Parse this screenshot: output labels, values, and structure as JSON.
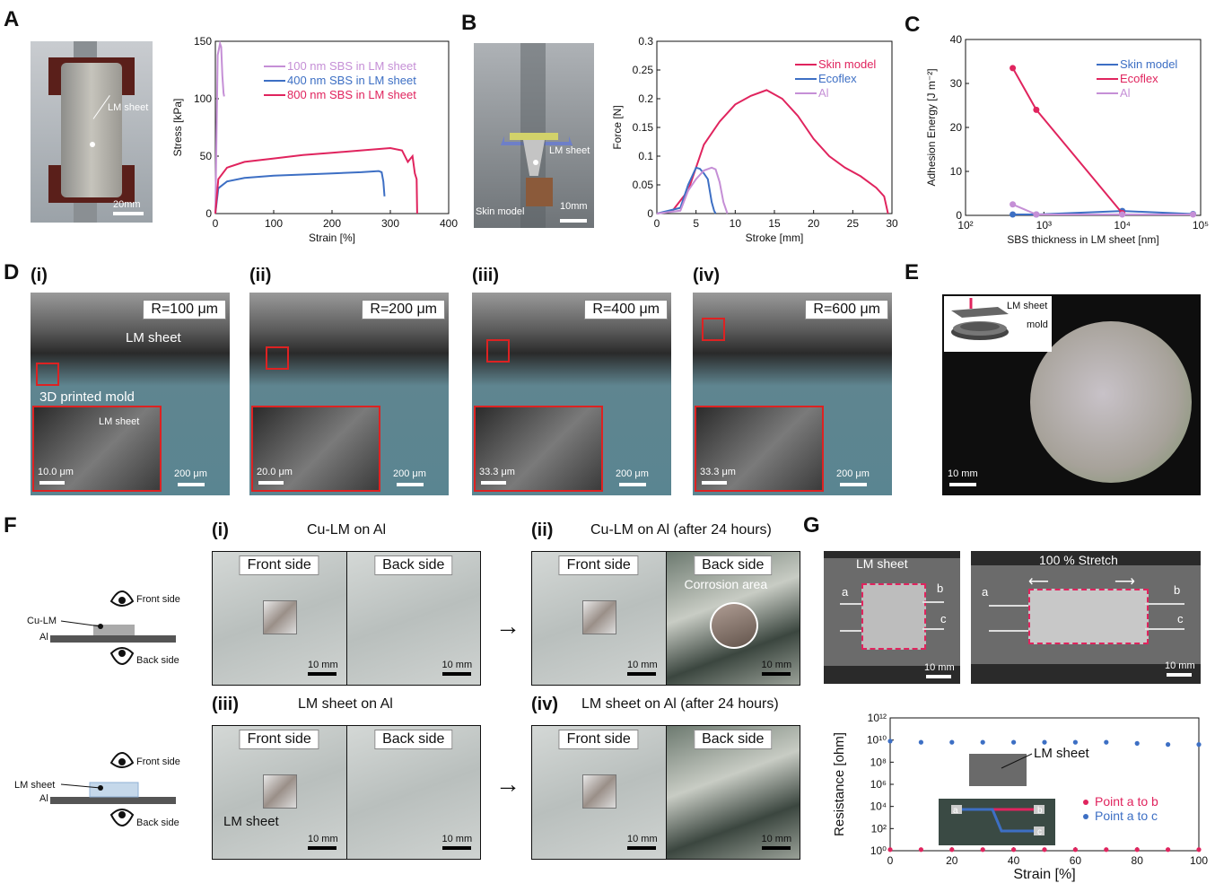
{
  "panels": {
    "A": "A",
    "B": "B",
    "C": "C",
    "D": "D",
    "E": "E",
    "F": "F",
    "G": "G"
  },
  "panelA": {
    "photo_label": "LM sheet",
    "scale": "20mm"
  },
  "panelB": {
    "photo_labels": [
      "LM sheet",
      "Skin model"
    ],
    "scale": "10mm"
  },
  "panelD": {
    "subpanels": [
      {
        "label": "(i)",
        "radius": "R=100 μm",
        "scale_main": "200 μm",
        "scale_inset": "10.0 μm",
        "tags": [
          "LM sheet",
          "3D printed mold"
        ],
        "inset_tag": "LM sheet"
      },
      {
        "label": "(ii)",
        "radius": "R=200 μm",
        "scale_main": "200 μm",
        "scale_inset": "20.0 μm"
      },
      {
        "label": "(iii)",
        "radius": "R=400 μm",
        "scale_main": "200 μm",
        "scale_inset": "33.3 μm"
      },
      {
        "label": "(iv)",
        "radius": "R=600 μm",
        "scale_main": "200 μm",
        "scale_inset": "33.3 μm"
      }
    ]
  },
  "panelE": {
    "inset_labels": [
      "LM sheet",
      "mold"
    ],
    "scale": "10 mm"
  },
  "panelF": {
    "schematic": {
      "top": {
        "eye_front": "Front side",
        "eye_back": "Back side",
        "layer1": "Cu-LM",
        "layer2": "Al"
      },
      "bottom": {
        "eye_front": "Front side",
        "eye_back": "Back side",
        "layer1": "LM sheet",
        "layer2": "Al"
      }
    },
    "subpanels": [
      {
        "label": "(i)",
        "title": "Cu-LM on Al",
        "front": "Front side",
        "back": "Back side",
        "scale": "10 mm"
      },
      {
        "label": "(ii)",
        "title": "Cu-LM on Al (after 24 hours)",
        "front": "Front side",
        "back": "Back side",
        "scale": "10 mm",
        "extra": "Corrosion area"
      },
      {
        "label": "(iii)",
        "title": "LM sheet on Al",
        "front": "Front side",
        "back": "Back side",
        "scale": "10 mm",
        "extra": "LM sheet"
      },
      {
        "label": "(iv)",
        "title": "LM sheet on Al (after 24 hours)",
        "front": "Front side",
        "back": "Back side",
        "scale": "10 mm"
      }
    ],
    "arrow": "→"
  },
  "panelG": {
    "photo1": {
      "title": "LM sheet",
      "points": [
        "a",
        "b",
        "c"
      ],
      "scale": "10 mm"
    },
    "photo2": {
      "title": "100 % Stretch",
      "points": [
        "a",
        "b",
        "c"
      ],
      "scale": "10 mm"
    }
  },
  "chart_data": [
    {
      "id": "A",
      "type": "line",
      "xlabel": "Strain [%]",
      "ylabel": "Stress [kPa]",
      "xlim": [
        0,
        400
      ],
      "ylim": [
        0,
        150
      ],
      "xticks": [
        0,
        100,
        200,
        300,
        400
      ],
      "yticks": [
        0,
        50,
        100,
        150
      ],
      "legend": "top-right",
      "series": [
        {
          "name": "100 nm SBS in LM sheet",
          "color": "#c58fd6",
          "x": [
            0,
            4,
            8,
            10,
            12,
            14,
            15
          ],
          "y": [
            0,
            138,
            148,
            145,
            120,
            105,
            102
          ]
        },
        {
          "name": "400 nm SBS in LM sheet",
          "color": "#3d6fc4",
          "x": [
            0,
            5,
            20,
            50,
            100,
            150,
            200,
            250,
            280,
            285,
            288,
            290
          ],
          "y": [
            0,
            22,
            28,
            31,
            33,
            34,
            35,
            36,
            37,
            36,
            28,
            15
          ]
        },
        {
          "name": "800 nm SBS in LM sheet",
          "color": "#e0245e",
          "x": [
            0,
            5,
            20,
            50,
            100,
            150,
            200,
            250,
            300,
            320,
            330,
            338,
            342,
            345,
            346
          ],
          "y": [
            0,
            30,
            40,
            45,
            48,
            51,
            53,
            55,
            57,
            55,
            45,
            50,
            35,
            30,
            0
          ]
        }
      ]
    },
    {
      "id": "B",
      "type": "line",
      "xlabel": "Stroke [mm]",
      "ylabel": "Force [N]",
      "xlim": [
        0,
        30
      ],
      "ylim": [
        0,
        0.3
      ],
      "xticks": [
        0,
        5,
        10,
        15,
        20,
        25,
        30
      ],
      "yticks": [
        0,
        0.05,
        0.1,
        0.15,
        0.2,
        0.25,
        0.3
      ],
      "legend": "top-right",
      "series": [
        {
          "name": "Skin model",
          "color": "#e0245e",
          "x": [
            0,
            2,
            4,
            6,
            8,
            10,
            12,
            14,
            16,
            18,
            20,
            22,
            24,
            26,
            28,
            29,
            29.5
          ],
          "y": [
            0,
            0.005,
            0.04,
            0.12,
            0.16,
            0.19,
            0.205,
            0.215,
            0.2,
            0.17,
            0.13,
            0.1,
            0.08,
            0.065,
            0.045,
            0.03,
            0
          ]
        },
        {
          "name": "Ecoflex",
          "color": "#3d6fc4",
          "x": [
            0,
            3,
            4,
            5,
            5.5,
            6,
            6.5,
            7,
            7.3,
            7.5
          ],
          "y": [
            0,
            0.01,
            0.05,
            0.08,
            0.078,
            0.07,
            0.06,
            0.02,
            0.005,
            0
          ]
        },
        {
          "name": "Al",
          "color": "#c58fd6",
          "x": [
            0,
            3,
            4,
            5,
            6,
            7,
            7.5,
            8,
            8.5,
            9
          ],
          "y": [
            0,
            0.005,
            0.04,
            0.06,
            0.075,
            0.08,
            0.077,
            0.055,
            0.02,
            0
          ]
        }
      ]
    },
    {
      "id": "C",
      "type": "line",
      "xlabel": "SBS thickness in LM sheet [nm]",
      "ylabel": "Adhesion Energy [J m⁻²]",
      "xscale": "log",
      "xlim": [
        100,
        100000
      ],
      "ylim": [
        0,
        40
      ],
      "xticks": [
        "10²",
        "10³",
        "10⁴",
        "10⁵"
      ],
      "yticks": [
        0,
        10,
        20,
        30,
        40
      ],
      "legend": "top-right",
      "series": [
        {
          "name": "Skin model",
          "color": "#3d6fc4",
          "x": [
            400,
            800,
            10000,
            80000
          ],
          "y": [
            0.2,
            0.2,
            1.0,
            0.3
          ]
        },
        {
          "name": "Ecoflex",
          "color": "#e0245e",
          "x": [
            400,
            800,
            10000
          ],
          "y": [
            33.5,
            24,
            0.5
          ]
        },
        {
          "name": "Al",
          "color": "#c58fd6",
          "x": [
            400,
            800,
            10000,
            80000
          ],
          "y": [
            2.5,
            0.2,
            0.2,
            0.2
          ]
        }
      ]
    },
    {
      "id": "G",
      "type": "scatter",
      "xlabel": "Strain [%]",
      "ylabel": "Resistance [ohm]",
      "yscale": "log",
      "xlim": [
        0,
        100
      ],
      "ylim_exp": [
        0,
        12
      ],
      "xticks": [
        0,
        20,
        40,
        60,
        80,
        100
      ],
      "yticks": [
        "10⁰",
        "10²",
        "10⁴",
        "10⁶",
        "10⁸",
        "10¹⁰",
        "10¹²"
      ],
      "legend": "bottom-right",
      "inset_labels": [
        "LM sheet",
        "a",
        "b",
        "c"
      ],
      "series": [
        {
          "name": "Point a to b",
          "color": "#e0245e",
          "x": [
            0,
            10,
            20,
            30,
            40,
            50,
            60,
            70,
            80,
            90,
            100
          ],
          "y_exp": [
            0.1,
            0.1,
            0.1,
            0.1,
            0.1,
            0.1,
            0.1,
            0.1,
            0.1,
            0.1,
            0.1
          ]
        },
        {
          "name": "Point a to c",
          "color": "#3d6fc4",
          "x": [
            0,
            10,
            20,
            30,
            40,
            50,
            60,
            70,
            80,
            90,
            100
          ],
          "y_exp": [
            9.9,
            9.8,
            9.8,
            9.8,
            9.8,
            9.8,
            9.8,
            9.8,
            9.7,
            9.6,
            9.6
          ]
        }
      ]
    }
  ]
}
